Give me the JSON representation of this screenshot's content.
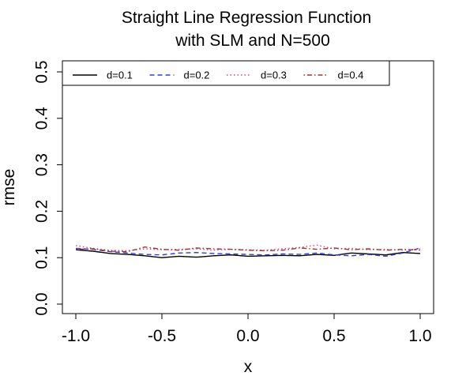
{
  "chart_data": {
    "type": "line",
    "title": [
      "Straight Line Regression Function",
      "with SLM and N=500"
    ],
    "xlabel": "x",
    "ylabel": "rmse",
    "xlim": [
      -1.0,
      1.0
    ],
    "ylim": [
      0.0,
      0.5
    ],
    "x_ticks": [
      -1.0,
      -0.5,
      0.0,
      0.5,
      1.0
    ],
    "x_tick_labels": [
      "-1.0",
      "-0.5",
      "0.0",
      "0.5",
      "1.0"
    ],
    "y_ticks": [
      0.0,
      0.1,
      0.2,
      0.3,
      0.4,
      0.5
    ],
    "y_tick_labels": [
      "0.0",
      "0.1",
      "0.2",
      "0.3",
      "0.4",
      "0.5"
    ],
    "grid": false,
    "legend_position": "top-left",
    "x": [
      -1.0,
      -0.9,
      -0.8,
      -0.7,
      -0.6,
      -0.5,
      -0.4,
      -0.3,
      -0.2,
      -0.1,
      0.0,
      0.1,
      0.2,
      0.3,
      0.4,
      0.5,
      0.6,
      0.7,
      0.8,
      0.9,
      1.0
    ],
    "series": [
      {
        "name": "d=0.1",
        "color": "#000000",
        "dash": "solid",
        "values": [
          0.117,
          0.114,
          0.109,
          0.107,
          0.104,
          0.1,
          0.103,
          0.101,
          0.104,
          0.106,
          0.103,
          0.104,
          0.105,
          0.104,
          0.107,
          0.105,
          0.11,
          0.108,
          0.106,
          0.111,
          0.109
        ]
      },
      {
        "name": "d=0.2",
        "color": "#2c3fd6",
        "dash": "dashed",
        "values": [
          0.12,
          0.118,
          0.113,
          0.11,
          0.107,
          0.106,
          0.11,
          0.111,
          0.109,
          0.108,
          0.107,
          0.106,
          0.108,
          0.107,
          0.11,
          0.106,
          0.104,
          0.107,
          0.103,
          0.11,
          0.121
        ]
      },
      {
        "name": "d=0.3",
        "color": "#e0407a",
        "dash": "dotted",
        "values": [
          0.126,
          0.12,
          0.116,
          0.115,
          0.119,
          0.117,
          0.118,
          0.119,
          0.116,
          0.118,
          0.117,
          0.116,
          0.119,
          0.122,
          0.127,
          0.119,
          0.12,
          0.117,
          0.118,
          0.116,
          0.119
        ]
      },
      {
        "name": "d=0.4",
        "color": "#a0342d",
        "dash": "dotdash",
        "values": [
          0.118,
          0.119,
          0.114,
          0.113,
          0.123,
          0.118,
          0.116,
          0.121,
          0.119,
          0.118,
          0.116,
          0.115,
          0.116,
          0.121,
          0.118,
          0.121,
          0.117,
          0.119,
          0.116,
          0.118,
          0.116
        ]
      }
    ]
  }
}
